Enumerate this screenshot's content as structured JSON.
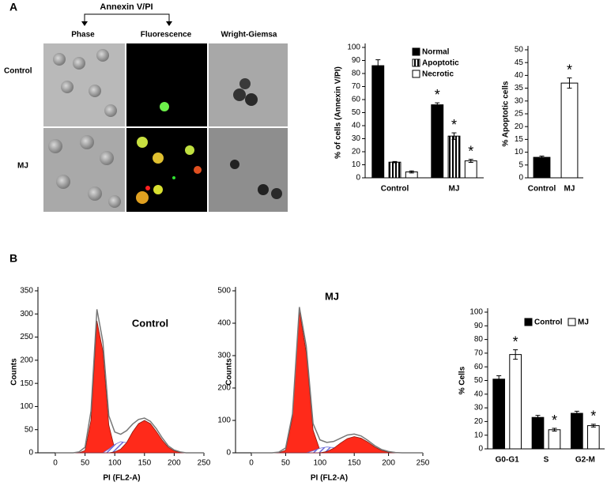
{
  "figure": {
    "panel_a": "A",
    "panel_b": "B",
    "annexin_header": "Annexin V/PI",
    "columns": [
      "Phase",
      "Fluorescence",
      "Wright-Giemsa"
    ],
    "rows": [
      "Control",
      "MJ"
    ]
  },
  "chart_data": [
    {
      "type": "bar",
      "ylabel": "% of cells (Annexin V/PI)",
      "categories": [
        "Control",
        "MJ"
      ],
      "series": [
        {
          "name": "Normal",
          "color": "#000000",
          "values": [
            86,
            56
          ],
          "errors": [
            4.5,
            1.5
          ],
          "annotations": [
            null,
            "*"
          ]
        },
        {
          "name": "Apoptotic",
          "color": "#000000",
          "pattern": "stripes",
          "values": [
            12,
            32
          ],
          "errors": [
            0.5,
            2.5
          ],
          "annotations": [
            null,
            "*"
          ]
        },
        {
          "name": "Necrotic",
          "color": "#ffffff",
          "values": [
            4.5,
            13
          ],
          "errors": [
            0.8,
            1.2
          ],
          "annotations": [
            null,
            "*"
          ]
        }
      ],
      "ylim": [
        0,
        100
      ],
      "yticks": [
        0,
        10,
        20,
        30,
        40,
        50,
        60,
        70,
        80,
        90,
        100
      ],
      "legend": "upper-right"
    },
    {
      "type": "bar",
      "ylabel": "% Apoptotic cells",
      "categories": [
        "Control",
        "MJ"
      ],
      "series": [
        {
          "color": "#000000",
          "values": [
            8,
            37
          ],
          "errors": [
            0.5,
            2
          ],
          "annotations": [
            null,
            "*"
          ],
          "category_colors": [
            "#000000",
            "#ffffff"
          ]
        }
      ],
      "ylim": [
        0,
        50
      ],
      "yticks": [
        0,
        5,
        10,
        15,
        20,
        25,
        30,
        35,
        40,
        45,
        50
      ]
    },
    {
      "type": "area",
      "annotation": "Control",
      "xlabel": "PI (FL2-A)",
      "ylabel": "Counts",
      "x": [
        0,
        10,
        20,
        30,
        40,
        50,
        60,
        70,
        80,
        90,
        100,
        110,
        120,
        130,
        140,
        150,
        160,
        170,
        180,
        190,
        200,
        210,
        220,
        230,
        240,
        250
      ],
      "series": [
        {
          "color": "#ff2a1a",
          "values": [
            0,
            0,
            0,
            0,
            0,
            5,
            70,
            285,
            220,
            60,
            8,
            0,
            0,
            0,
            0,
            0,
            0,
            0,
            0,
            0,
            0,
            0,
            0,
            0,
            0,
            0
          ]
        },
        {
          "color": "#6a6ad8",
          "pattern": "hatch",
          "values": [
            0,
            0,
            0,
            0,
            0,
            0,
            0,
            0,
            0,
            8,
            18,
            24,
            22,
            14,
            6,
            0,
            0,
            0,
            0,
            0,
            0,
            0,
            0,
            0,
            0,
            0
          ]
        },
        {
          "color": "#ff2a1a",
          "values": [
            0,
            0,
            0,
            0,
            0,
            0,
            0,
            0,
            0,
            0,
            2,
            8,
            22,
            45,
            63,
            70,
            63,
            46,
            27,
            12,
            4,
            1,
            0,
            0,
            0,
            0
          ]
        },
        {
          "color": "#777777",
          "outline": true,
          "values": [
            0,
            0,
            0,
            0,
            2,
            12,
            90,
            310,
            240,
            80,
            45,
            40,
            48,
            62,
            72,
            75,
            68,
            52,
            32,
            15,
            6,
            2,
            0,
            0,
            0,
            0
          ]
        }
      ],
      "xlim": [
        0,
        250
      ],
      "xticks": [
        0,
        50,
        100,
        150,
        200,
        250
      ],
      "ylim": [
        0,
        350
      ],
      "yticks": [
        0,
        50,
        100,
        150,
        200,
        250,
        300,
        350
      ]
    },
    {
      "type": "area",
      "annotation": "MJ",
      "xlabel": "PI (FL2-A)",
      "ylabel": "Counts",
      "x": [
        0,
        10,
        20,
        30,
        40,
        50,
        60,
        70,
        80,
        90,
        100,
        110,
        120,
        130,
        140,
        150,
        160,
        170,
        180,
        190,
        200,
        210,
        220,
        230,
        240,
        250
      ],
      "series": [
        {
          "color": "#ff2a1a",
          "values": [
            0,
            0,
            0,
            0,
            0,
            8,
            110,
            440,
            310,
            70,
            8,
            0,
            0,
            0,
            0,
            0,
            0,
            0,
            0,
            0,
            0,
            0,
            0,
            0,
            0,
            0
          ]
        },
        {
          "color": "#6a6ad8",
          "pattern": "hatch",
          "values": [
            0,
            0,
            0,
            0,
            0,
            0,
            0,
            0,
            0,
            6,
            14,
            18,
            16,
            10,
            4,
            0,
            0,
            0,
            0,
            0,
            0,
            0,
            0,
            0,
            0,
            0
          ]
        },
        {
          "color": "#ff2a1a",
          "values": [
            0,
            0,
            0,
            0,
            0,
            0,
            0,
            0,
            0,
            0,
            0,
            4,
            14,
            30,
            44,
            50,
            45,
            33,
            18,
            7,
            2,
            0,
            0,
            0,
            0,
            0
          ]
        },
        {
          "color": "#777777",
          "outline": true,
          "values": [
            0,
            0,
            0,
            0,
            2,
            15,
            120,
            450,
            330,
            90,
            40,
            32,
            35,
            45,
            55,
            58,
            52,
            38,
            22,
            10,
            4,
            1,
            0,
            0,
            0,
            0
          ]
        }
      ],
      "xlim": [
        0,
        250
      ],
      "xticks": [
        0,
        50,
        100,
        150,
        200,
        250
      ],
      "ylim": [
        0,
        500
      ],
      "yticks": [
        0,
        100,
        200,
        300,
        400,
        500
      ]
    },
    {
      "type": "bar",
      "ylabel": "% Cells",
      "categories": [
        "G0-G1",
        "S",
        "G2-M"
      ],
      "series": [
        {
          "name": "Control",
          "color": "#000000",
          "values": [
            51,
            23,
            26
          ],
          "errors": [
            2.5,
            1.5,
            1.5
          ],
          "annotations": [
            null,
            null,
            null
          ]
        },
        {
          "name": "MJ",
          "color": "#ffffff",
          "values": [
            69,
            14,
            17
          ],
          "errors": [
            3.5,
            1,
            1
          ],
          "annotations": [
            "*",
            "*",
            "*"
          ]
        }
      ],
      "ylim": [
        0,
        100
      ],
      "yticks": [
        0,
        10,
        20,
        30,
        40,
        50,
        60,
        70,
        80,
        90,
        100
      ],
      "legend": "upper-center"
    }
  ]
}
